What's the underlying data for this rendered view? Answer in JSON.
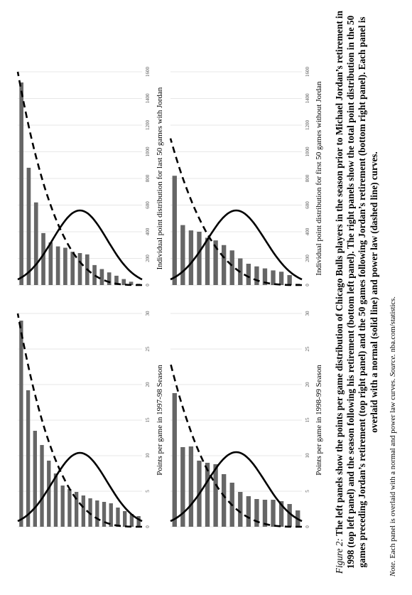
{
  "figure": {
    "label": "Figure 2:",
    "caption": "The left panels show the points per game distribution of Chicago Bulls players in the season prior to Michael Jordan’s retirement in 1998 (top left panel) and the season following his retirement (bottom left panel). The right panels show the total point distribution in the 50 games preceding Jordan’s retirement (top right panel) and the 50 games following Jordan’s retirement (bottom right panel). Each panel is overlaid with a normal (solid line) and power law (dashed line) curves.",
    "note_label": "Note.",
    "note_text": "Each panel is overlaid with a normal and power law curves.",
    "source_label": "Source.",
    "source_text": "nba.com/statistics."
  },
  "colors": {
    "bar": "#666666",
    "curve": "#000000",
    "grid": "#cfcfcf"
  },
  "chart_data": [
    {
      "id": "top-left",
      "type": "bar",
      "xlabel": "Points per game in  1997-98 Season",
      "ylim": [
        0,
        30
      ],
      "ticks": [
        0,
        5,
        10,
        15,
        20,
        25,
        30
      ],
      "values": [
        1.5,
        1.8,
        2.2,
        2.7,
        3.3,
        3.5,
        3.7,
        4.0,
        4.4,
        4.9,
        5.3,
        5.8,
        7.5,
        9.3,
        11.5,
        13.5,
        19.2,
        29.0
      ],
      "normal_peak": 10.4,
      "power_end": 30
    },
    {
      "id": "top-right",
      "type": "bar",
      "xlabel": "Individual point distribution for last 50 games with Jordan",
      "ylim": [
        0,
        1600
      ],
      "ticks": [
        0,
        200,
        400,
        600,
        800,
        1000,
        1200,
        1400,
        1600
      ],
      "values": [
        10,
        25,
        45,
        70,
        95,
        120,
        150,
        230,
        240,
        250,
        280,
        290,
        320,
        390,
        620,
        880,
        1520
      ],
      "normal_peak": 560,
      "power_end": 1600
    },
    {
      "id": "bottom-left",
      "type": "bar",
      "xlabel": "Points per game in 1998-99 Season",
      "ylim": [
        0,
        30
      ],
      "ticks": [
        0,
        5,
        10,
        15,
        20,
        25,
        30
      ],
      "values": [
        2.3,
        3.2,
        3.6,
        3.8,
        3.8,
        3.9,
        4.3,
        4.9,
        6.2,
        7.4,
        8.8,
        9.0,
        9.3,
        11.3,
        11.2,
        18.8
      ],
      "normal_peak": 10.5,
      "power_end": 23
    },
    {
      "id": "bottom-right",
      "type": "bar",
      "xlabel": "Individual point distribution for first 50 games without Jordan",
      "ylim": [
        0,
        1600
      ],
      "ticks": [
        0,
        200,
        400,
        600,
        800,
        1000,
        1200,
        1400,
        1600
      ],
      "values": [
        10,
        75,
        100,
        110,
        125,
        140,
        160,
        200,
        260,
        300,
        335,
        355,
        400,
        410,
        450,
        820
      ],
      "normal_peak": 560,
      "power_end": 1100
    }
  ]
}
